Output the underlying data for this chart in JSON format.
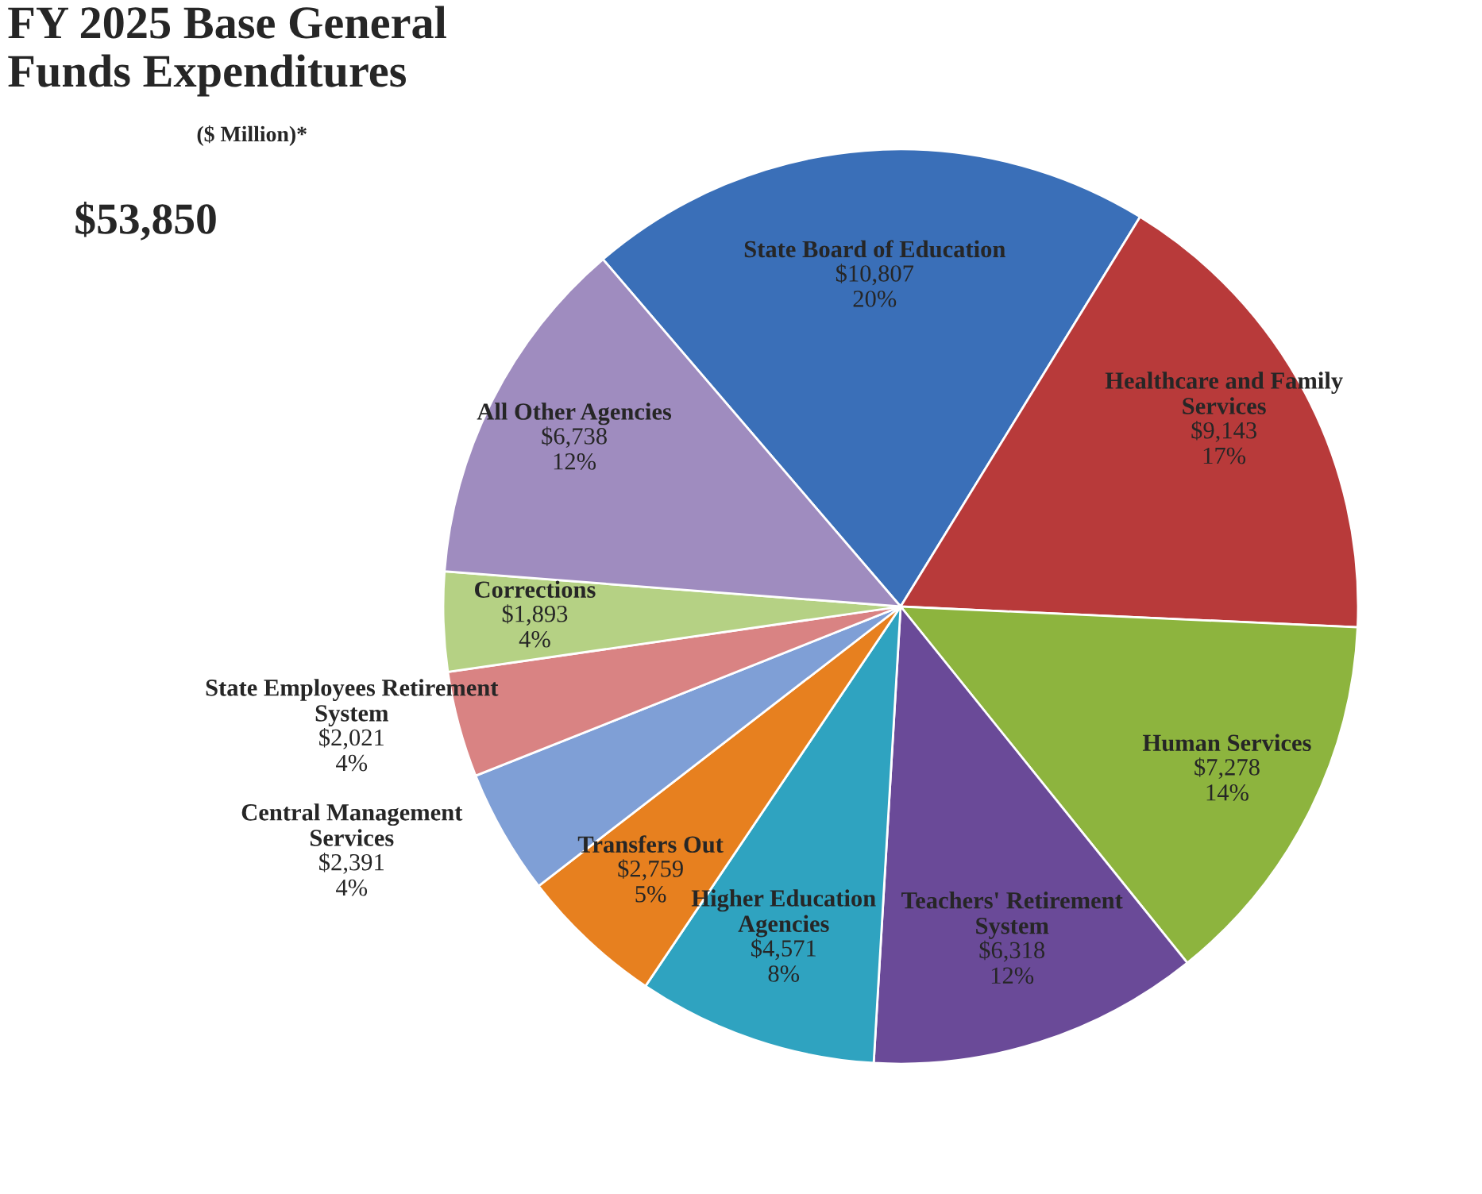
{
  "chart_data": {
    "type": "pie",
    "title": "FY 2025 Base General\nFunds Expenditures",
    "subtitle": "($ Million)*",
    "annotations": [
      "$53,850"
    ],
    "categories": [
      "State Board of Education",
      "Healthcare and Family\nServices",
      "Human Services",
      "Teachers' Retirement\nSystem",
      "Higher Education\nAgencies",
      "Transfers Out",
      "Central Management\nServices",
      "State Employees Retirement\nSystem",
      "Corrections",
      "All Other Agencies"
    ],
    "values": [
      10807,
      9143,
      7278,
      6318,
      4571,
      2759,
      2391,
      2021,
      1893,
      6738
    ],
    "value_labels": [
      "$10,807\n20%",
      "$9,143\n17%",
      "$7,278\n14%",
      "$6,318\n12%",
      "$4,571\n8%",
      "$2,759\n5%",
      "$2,391\n4%",
      "$2,021\n4%",
      "$1,893\n4%",
      "$6,738\n12%"
    ],
    "colors": [
      "#3a6fb8",
      "#b83a3a",
      "#8db43e",
      "#6a4a98",
      "#2fa3c0",
      "#e7801f",
      "#7f9fd6",
      "#d98383",
      "#b5d184",
      "#9f8cbf"
    ],
    "legend": false
  }
}
